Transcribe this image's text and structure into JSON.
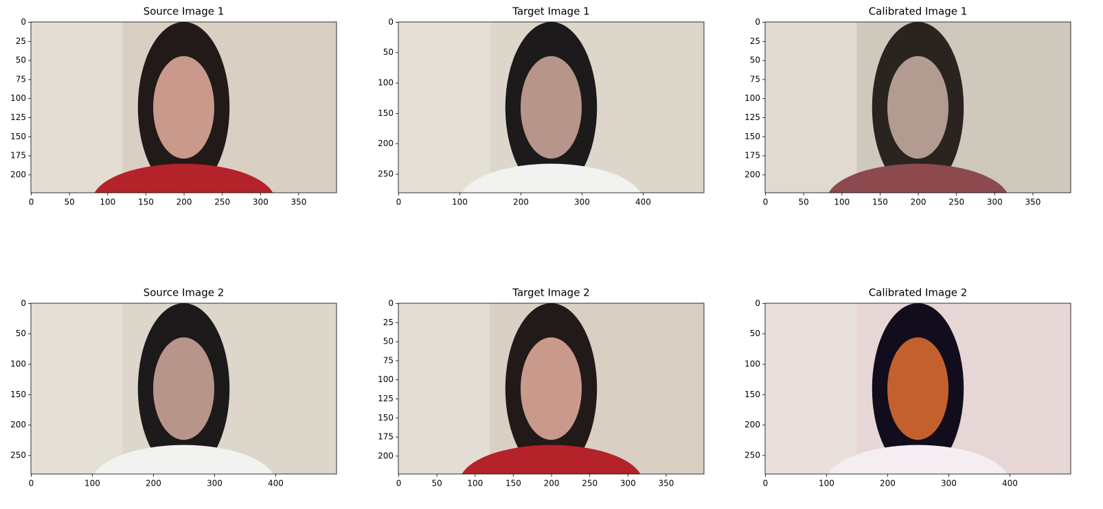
{
  "chart_data": [
    {
      "type": "image",
      "title": "Source Image 1",
      "xlim": [
        -0.5,
        399.5
      ],
      "ylim": [
        223.5,
        -0.5
      ],
      "xticks": [
        0,
        50,
        100,
        150,
        200,
        250,
        300,
        350
      ],
      "yticks": [
        0,
        25,
        50,
        75,
        100,
        125,
        150,
        175,
        200
      ]
    },
    {
      "type": "image",
      "title": "Target Image 1",
      "xlim": [
        -0.5,
        499.5
      ],
      "ylim": [
        280.5,
        -0.5
      ],
      "xticks": [
        0,
        100,
        200,
        300,
        400
      ],
      "yticks": [
        0,
        50,
        100,
        150,
        200,
        250
      ]
    },
    {
      "type": "image",
      "title": "Calibrated Image 1",
      "xlim": [
        -0.5,
        399.5
      ],
      "ylim": [
        223.5,
        -0.5
      ],
      "xticks": [
        0,
        50,
        100,
        150,
        200,
        250,
        300,
        350
      ],
      "yticks": [
        0,
        25,
        50,
        75,
        100,
        125,
        150,
        175,
        200
      ]
    },
    {
      "type": "image",
      "title": "Source Image 2",
      "xlim": [
        -0.5,
        499.5
      ],
      "ylim": [
        280.5,
        -0.5
      ],
      "xticks": [
        0,
        100,
        200,
        300,
        400
      ],
      "yticks": [
        0,
        50,
        100,
        150,
        200,
        250
      ]
    },
    {
      "type": "image",
      "title": "Target Image 2",
      "xlim": [
        -0.5,
        399.5
      ],
      "ylim": [
        223.5,
        -0.5
      ],
      "xticks": [
        0,
        50,
        100,
        150,
        200,
        250,
        300,
        350
      ],
      "yticks": [
        0,
        25,
        50,
        75,
        100,
        125,
        150,
        175,
        200
      ]
    },
    {
      "type": "image",
      "title": "Calibrated Image 2",
      "xlim": [
        -0.5,
        499.5
      ],
      "ylim": [
        280.5,
        -0.5
      ],
      "xticks": [
        0,
        100,
        200,
        300,
        400
      ],
      "yticks": [
        0,
        50,
        100,
        150,
        200,
        250
      ]
    }
  ]
}
